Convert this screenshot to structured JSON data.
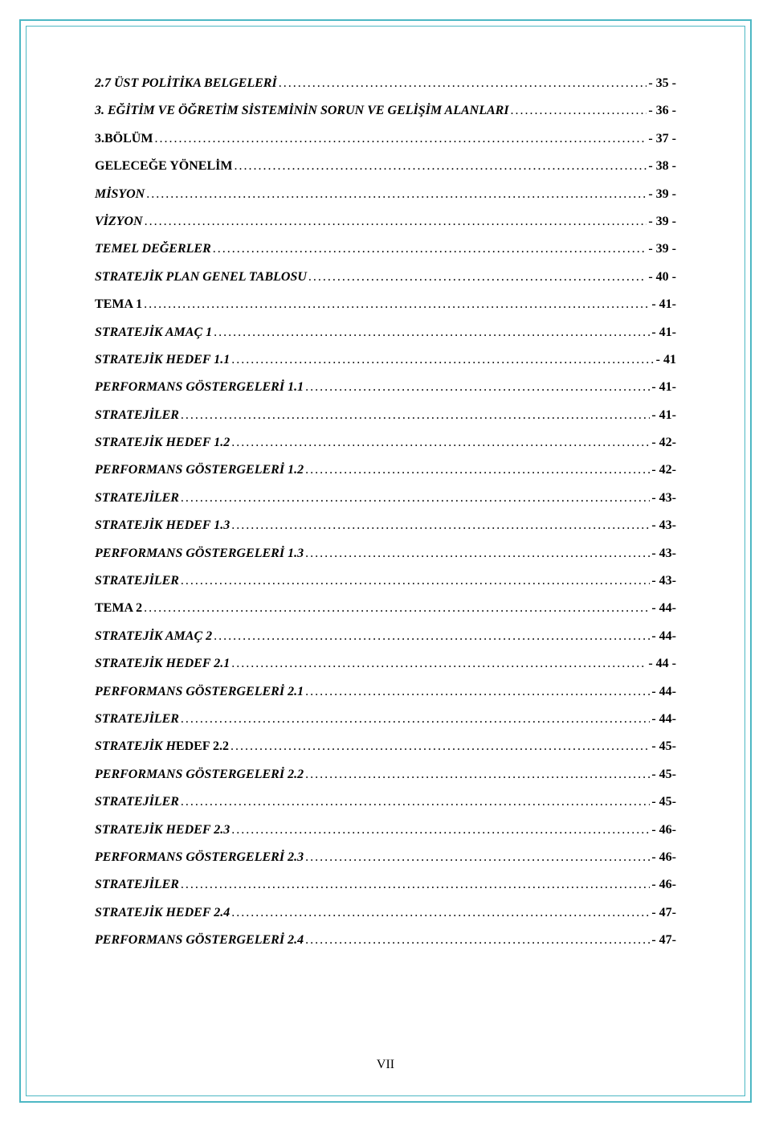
{
  "page": {
    "border_outer_color": "#4db8c4",
    "border_inner_color": "#4db8c4",
    "background_color": "#ffffff",
    "page_number": "VII",
    "font_family": "Times New Roman",
    "font_size_pt": 12,
    "text_color": "#000000"
  },
  "toc": [
    {
      "label": "2.7 ÜST POLİTİKA BELGELERİ",
      "page": "- 35 -",
      "italic": true,
      "bold": true
    },
    {
      "label": "3. EĞİTİM VE ÖĞRETİM SİSTEMİNİN SORUN VE GELİŞİM ALANLARI",
      "page": "- 36 -",
      "italic": true,
      "bold": true
    },
    {
      "label": "3.BÖLÜM",
      "page": "- 37 -",
      "italic": false,
      "bold": true
    },
    {
      "label": "GELECEĞE YÖNELİM",
      "page": "- 38 -",
      "italic": false,
      "bold": true
    },
    {
      "label": "MİSYON",
      "page": "- 39 -",
      "italic": true,
      "bold": true
    },
    {
      "label": "VİZYON",
      "page": "- 39 -",
      "italic": true,
      "bold": true
    },
    {
      "label": "TEMEL DEĞERLER",
      "page": "- 39 -",
      "italic": true,
      "bold": true
    },
    {
      "label": "STRATEJİK PLAN GENEL TABLOSU",
      "page": "- 40 -",
      "italic": true,
      "bold": true
    },
    {
      "label": "TEMA 1",
      "page": "- 41-",
      "italic": false,
      "bold": true
    },
    {
      "label": "STRATEJİK AMAÇ 1",
      "page": "- 41-",
      "italic": true,
      "bold": true
    },
    {
      "label": "STRATEJİK HEDEF 1.1",
      "page": " - 41",
      "italic": true,
      "bold": true
    },
    {
      "label": "PERFORMANS GÖSTERGELERİ 1.1",
      "page": "- 41-",
      "italic": true,
      "bold": true
    },
    {
      "label": "STRATEJİLER",
      "page": "- 41-",
      "italic": true,
      "bold": true
    },
    {
      "label": "STRATEJİK HEDEF 1.2",
      "page": "- 42-",
      "italic": true,
      "bold": true
    },
    {
      "label": "PERFORMANS GÖSTERGELERİ 1.2",
      "page": "- 42-",
      "italic": true,
      "bold": true
    },
    {
      "label": "STRATEJİLER",
      "page": "- 43-",
      "italic": true,
      "bold": true
    },
    {
      "label": "STRATEJİK HEDEF 1.3",
      "page": "- 43-",
      "italic": true,
      "bold": true
    },
    {
      "label": "PERFORMANS GÖSTERGELERİ 1.3",
      "page": "- 43-",
      "italic": true,
      "bold": true
    },
    {
      "label": "STRATEJİLER",
      "page": "- 43-",
      "italic": true,
      "bold": true
    },
    {
      "label": "TEMA 2",
      "page": "- 44-",
      "italic": false,
      "bold": true
    },
    {
      "label": "STRATEJİK AMAÇ 2",
      "page": "- 44-",
      "italic": true,
      "bold": true
    },
    {
      "label": "STRATEJİK HEDEF 2.1",
      "page": "- 44 -",
      "italic": true,
      "bold": true
    },
    {
      "label": "PERFORMANS GÖSTERGELERİ 2.1",
      "page": "- 44-",
      "italic": true,
      "bold": true
    },
    {
      "label": "STRATEJİLER",
      "page": "- 44-",
      "italic": true,
      "bold": true
    },
    {
      "label": "STRATEJİK HEDEF 2.2",
      "page": "- 45-",
      "italic": true,
      "bold": true,
      "mixed": true,
      "italic_part": "STRATEJİK H",
      "normal_part": "EDEF 2.2"
    },
    {
      "label": "PERFORMANS GÖSTERGELERİ 2.2",
      "page": "- 45-",
      "italic": true,
      "bold": true
    },
    {
      "label": "STRATEJİLER",
      "page": "- 45-",
      "italic": true,
      "bold": true
    },
    {
      "label": "STRATEJİK HEDEF 2.3",
      "page": "- 46-",
      "italic": true,
      "bold": true
    },
    {
      "label": "PERFORMANS GÖSTERGELERİ 2.3",
      "page": "- 46-",
      "italic": true,
      "bold": true
    },
    {
      "label": "STRATEJİLER",
      "page": "- 46-",
      "italic": true,
      "bold": true
    },
    {
      "label": "STRATEJİK HEDEF 2.4",
      "page": "- 47-",
      "italic": true,
      "bold": true
    },
    {
      "label": "PERFORMANS GÖSTERGELERİ 2.4",
      "page": "- 47-",
      "italic": true,
      "bold": true
    }
  ]
}
